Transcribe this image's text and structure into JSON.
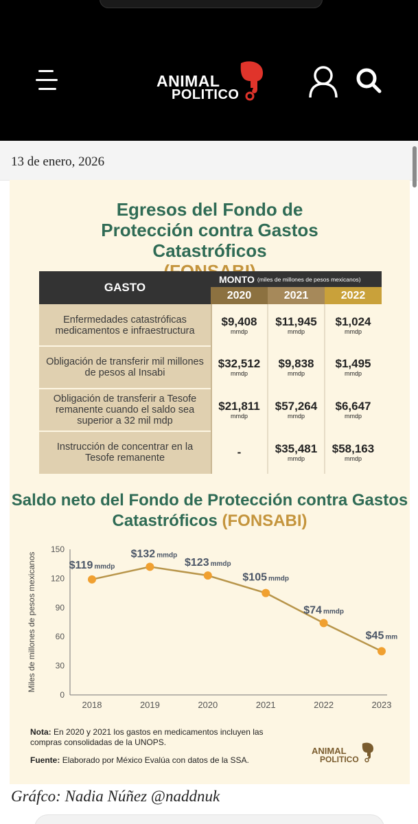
{
  "header": {
    "logo_line1": "ANIMAL",
    "logo_line2": "POLITICO",
    "menu_icon": "hamburger-menu-icon",
    "user_icon": "user-icon",
    "search_icon": "search-icon"
  },
  "date": "13 de enero, 2026",
  "infographic": {
    "title1_main": "Egresos del  Fondo de Protección contra Gastos Catastróficos",
    "title1_paren": "(FONSABI)",
    "table": {
      "header_gasto": "GASTO",
      "header_monto": "MONTO",
      "header_monto_note": "(miles de millones de pesos mexicanos)",
      "years": [
        "2020",
        "2021",
        "2022"
      ],
      "unit": "mmdp",
      "rows": [
        {
          "label": "Enfermedades catastróficas medicamentos e infraestructura",
          "values": [
            "$9,408",
            "$11,945",
            "$1,024"
          ]
        },
        {
          "label": "Obligación de transferir mil millones de pesos al Insabi",
          "values": [
            "$32,512",
            "$9,838",
            "$1,495"
          ]
        },
        {
          "label": "Obligación de transferir a Tesofe remanente cuando el saldo sea superior a 32 mil mdp",
          "values": [
            "$21,811",
            "$57,264",
            "$6,647"
          ]
        },
        {
          "label": "Instrucción de concentrar en la Tesofe remanente",
          "values": [
            "-",
            "$35,481",
            "$58,163"
          ]
        }
      ]
    },
    "title2_main": "Saldo neto del Fondo de Protección contra Gastos Catastróficos",
    "title2_paren": "(FONSABI)",
    "nota_label": "Nota:",
    "nota_text": "En 2020 y 2021 los gastos en medicamentos incluyen las compras consolidadas de la UNOPS.",
    "fuente_label": "Fuente:",
    "fuente_text": "Elaborado por México Evalúa con datos de la SSA.",
    "logo_line1": "ANIMAL",
    "logo_line2": "POLITICO"
  },
  "credit": "Gráfco: Nadia Núñez @naddnuk",
  "colors": {
    "background": "#fdf6e3",
    "title_green": "#2f6b55",
    "accent_gold": "#c4943c",
    "line": "#b8954a",
    "point": "#f0a030",
    "year_2020": "#8c7140",
    "year_2021": "#a6895a",
    "year_2022": "#c9a13a",
    "elephant_red": "#e0342b"
  },
  "chart_data": {
    "type": "line",
    "ylabel": "Miles de millones de pesos mexicanos",
    "xlabel": "",
    "x": [
      "2018",
      "2019",
      "2020",
      "2021",
      "2022",
      "2023"
    ],
    "values": [
      119,
      132,
      123,
      105,
      74,
      45
    ],
    "labels": [
      "$119",
      "$132",
      "$123",
      "$105",
      "$74",
      "$45"
    ],
    "label_unit": "mmdp",
    "yticks": [
      0,
      30,
      60,
      90,
      120,
      150
    ],
    "ylim": [
      0,
      150
    ],
    "grid": false
  }
}
